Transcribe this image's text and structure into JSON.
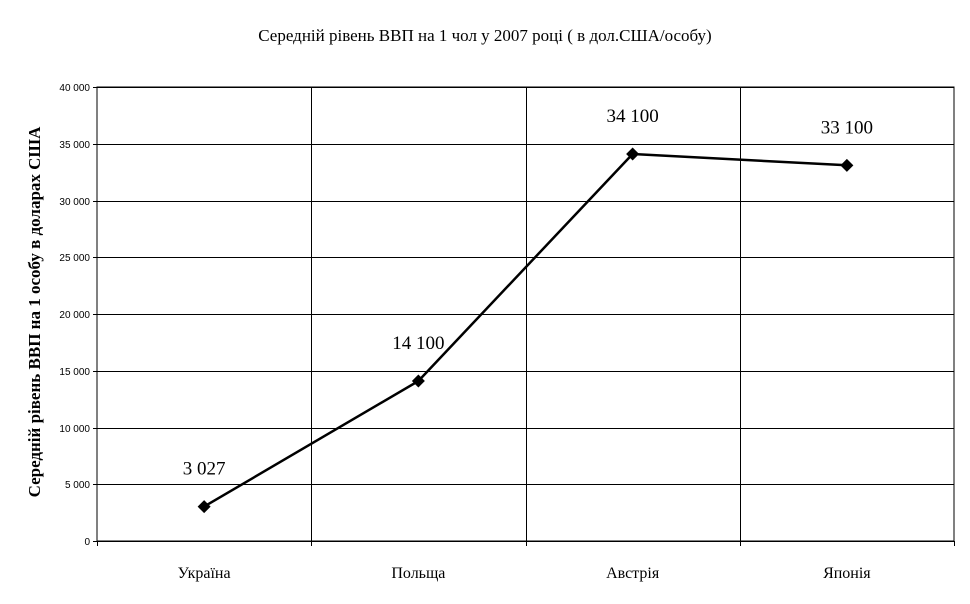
{
  "chart_data": {
    "type": "line",
    "title": "Середній рівень ВВП на 1 чол у 2007 році ( в дол.США/особу)",
    "xlabel": "",
    "ylabel": "Середній рівень ВВП на 1 особу в доларах США",
    "categories": [
      "Україна",
      "Польща",
      "Австрія",
      "Японія"
    ],
    "series": [
      {
        "values": [
          3027,
          14100,
          34100,
          33100
        ]
      }
    ],
    "data_labels": [
      "3 027",
      "14 100",
      "34 100",
      "33 100"
    ],
    "ylim": [
      0,
      40000
    ],
    "yticks": [
      0,
      5000,
      10000,
      15000,
      20000,
      25000,
      30000,
      35000,
      40000
    ],
    "ytick_labels": [
      "0",
      "5 000",
      "10 000",
      "15 000",
      "20 000",
      "25 000",
      "30 000",
      "35 000",
      "40 000"
    ],
    "grid": true,
    "marker": "diamond",
    "line_color": "#000000",
    "grid_color": "#000000",
    "legend": "none"
  }
}
